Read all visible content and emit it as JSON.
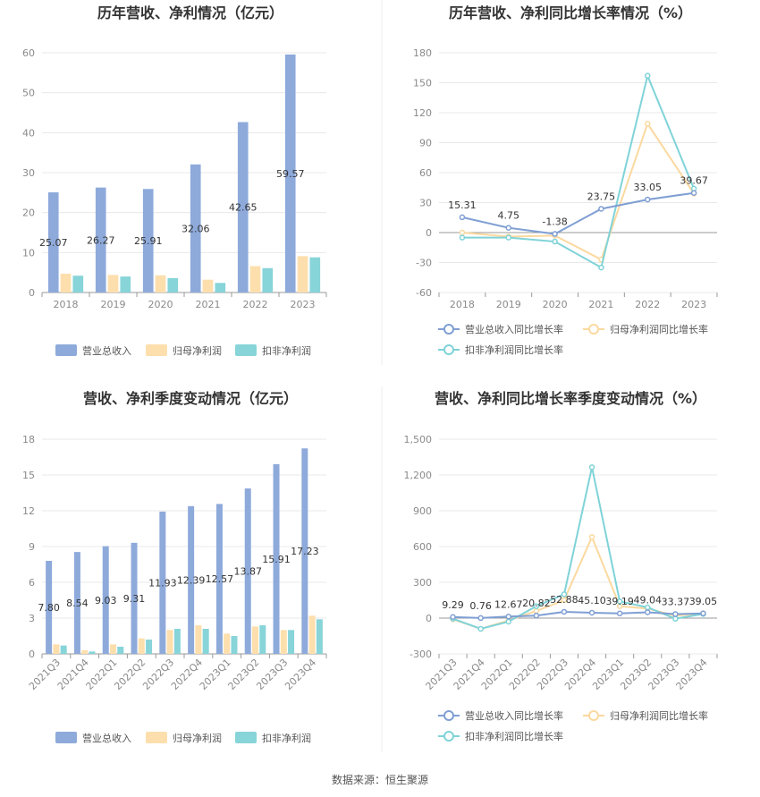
{
  "source": "数据来源：恒生聚源",
  "colors": {
    "revenue": "#8eaadb",
    "netprofit": "#fddfad",
    "deducted": "#87d4d9",
    "grid": "#e8e8e8",
    "axis": "#999999"
  },
  "chart_data": [
    {
      "type": "bar",
      "title": "历年营收、净利情况（亿元）",
      "categories": [
        "2018",
        "2019",
        "2020",
        "2021",
        "2022",
        "2023"
      ],
      "series": [
        {
          "name": "营业总收入",
          "values": [
            25.07,
            26.27,
            25.91,
            32.06,
            42.65,
            59.57
          ]
        },
        {
          "name": "归母净利润",
          "values": [
            4.7,
            4.4,
            4.3,
            3.2,
            6.6,
            9.1
          ]
        },
        {
          "name": "扣非净利润",
          "values": [
            4.2,
            4.0,
            3.6,
            2.4,
            6.1,
            8.8
          ]
        }
      ],
      "data_labels": [
        "25.07",
        "26.27",
        "25.91",
        "32.06",
        "42.65",
        "59.57"
      ],
      "yticks": [
        "0",
        "10",
        "20",
        "30",
        "40",
        "50",
        "60"
      ],
      "ylim": [
        0,
        60
      ],
      "legend": "bottom"
    },
    {
      "type": "line",
      "title": "历年营收、净利同比增长率情况（%）",
      "categories": [
        "2018",
        "2019",
        "2020",
        "2021",
        "2022",
        "2023"
      ],
      "series": [
        {
          "name": "营业总收入同比增长率",
          "values": [
            15.31,
            4.75,
            -1.38,
            23.75,
            33.05,
            39.67
          ]
        },
        {
          "name": "归母净利润同比增长率",
          "values": [
            0,
            -4,
            -3,
            -27,
            109,
            39
          ]
        },
        {
          "name": "扣非净利润同比增长率",
          "values": [
            -5,
            -5,
            -9,
            -35,
            157,
            44
          ]
        }
      ],
      "data_labels": [
        "15.31",
        "4.75",
        "-1.38",
        "23.75",
        "33.05",
        "39.67"
      ],
      "yticks": [
        "-60",
        "-30",
        "0",
        "30",
        "60",
        "90",
        "120",
        "150",
        "180"
      ],
      "ylim": [
        -60,
        180
      ],
      "legend": "bottom"
    },
    {
      "type": "bar",
      "title": "营收、净利季度变动情况（亿元）",
      "categories": [
        "2021Q3",
        "2021Q4",
        "2022Q1",
        "2022Q2",
        "2022Q3",
        "2022Q4",
        "2023Q1",
        "2023Q2",
        "2023Q3",
        "2023Q4"
      ],
      "series": [
        {
          "name": "营业总收入",
          "values": [
            7.8,
            8.54,
            9.03,
            9.31,
            11.93,
            12.39,
            12.57,
            13.87,
            15.91,
            17.23
          ]
        },
        {
          "name": "归母净利润",
          "values": [
            0.8,
            0.3,
            0.8,
            1.3,
            2.0,
            2.4,
            1.7,
            2.3,
            2.0,
            3.2
          ]
        },
        {
          "name": "扣非净利润",
          "values": [
            0.7,
            0.2,
            0.6,
            1.2,
            2.1,
            2.1,
            1.5,
            2.4,
            2.0,
            2.9
          ]
        }
      ],
      "data_labels": [
        "7.80",
        "8.54",
        "9.03",
        "9.31",
        "11.93",
        "12.39",
        "12.57",
        "13.87",
        "15.91",
        "17.23"
      ],
      "yticks": [
        "0",
        "3",
        "6",
        "9",
        "12",
        "15",
        "18"
      ],
      "ylim": [
        0,
        18
      ],
      "legend": "bottom"
    },
    {
      "type": "line",
      "title": "营收、净利同比增长率季度变动情况（%）",
      "categories": [
        "2021Q3",
        "2021Q4",
        "2022Q1",
        "2022Q2",
        "2022Q3",
        "2022Q4",
        "2023Q1",
        "2023Q2",
        "2023Q3",
        "2023Q4"
      ],
      "series": [
        {
          "name": "营业总收入同比增长率",
          "values": [
            9.29,
            0.76,
            12.67,
            20.82,
            52.88,
            45.1,
            39.19,
            49.04,
            33.37,
            39.05
          ]
        },
        {
          "name": "归母净利润同比增长率",
          "values": [
            -10,
            -90,
            -20,
            60,
            150,
            680,
            100,
            80,
            20,
            40
          ]
        },
        {
          "name": "扣非净利润同比增长率",
          "values": [
            -5,
            -90,
            -30,
            100,
            200,
            1265,
            140,
            90,
            -5,
            35
          ]
        }
      ],
      "data_labels": [
        "9.29",
        "0.76",
        "12.67",
        "20.82",
        "52.88",
        "45.10",
        "39.19",
        "49.04",
        "33.37",
        "39.05"
      ],
      "yticks": [
        "-300",
        "0",
        "300",
        "600",
        "900",
        "1,200",
        "1,500"
      ],
      "ylim": [
        -300,
        1500
      ],
      "legend": "bottom"
    }
  ]
}
